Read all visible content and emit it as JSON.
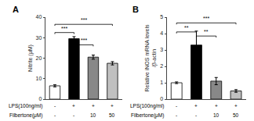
{
  "chart_data": [
    {
      "type": "bar",
      "title": "A",
      "values": [
        6.5,
        29.5,
        20.5,
        17.5
      ],
      "errors": [
        0.5,
        1.0,
        1.0,
        0.8
      ],
      "colors": [
        "white",
        "black",
        "#888888",
        "#c0c0c0"
      ],
      "ylabel": "Nitrite (μM)",
      "ylim": [
        0,
        40
      ],
      "yticks": [
        0,
        10,
        20,
        30,
        40
      ],
      "grid": false,
      "label_rows": [
        {
          "header": "LPS(100ng/ml)",
          "labels": [
            "-",
            "+",
            "+",
            "+"
          ]
        },
        {
          "header": "Filbertone(μM)",
          "labels": [
            "-",
            "-",
            "10",
            "50"
          ]
        }
      ],
      "significance": [
        {
          "x1": 0,
          "x2": 1,
          "y": 32.5,
          "label": "***"
        },
        {
          "x1": 1,
          "x2": 2,
          "y": 26.5,
          "label": "***"
        },
        {
          "x1": 0,
          "x2": 3,
          "y": 36.5,
          "label": "***"
        }
      ]
    },
    {
      "type": "bar",
      "title": "B",
      "values": [
        1.0,
        3.3,
        1.1,
        0.5
      ],
      "errors": [
        0.05,
        0.85,
        0.22,
        0.08
      ],
      "colors": [
        "white",
        "black",
        "#888888",
        "#c0c0c0"
      ],
      "ylabel": "Relative iNOS mRNA levels\n/β-actin",
      "ylim": [
        0,
        5
      ],
      "yticks": [
        0,
        1,
        2,
        3,
        4,
        5
      ],
      "grid": false,
      "label_rows": [
        {
          "header": "LPS(100ng/ml)",
          "labels": [
            "-",
            "+",
            "+",
            "+"
          ]
        },
        {
          "header": "Filbertone(μM)",
          "labels": [
            "-",
            "-",
            "10",
            "50"
          ]
        }
      ],
      "significance": [
        {
          "x1": 0,
          "x2": 1,
          "y": 4.1,
          "label": "**"
        },
        {
          "x1": 1,
          "x2": 2,
          "y": 3.85,
          "label": "**"
        },
        {
          "x1": 0,
          "x2": 3,
          "y": 4.65,
          "label": "***"
        }
      ]
    }
  ]
}
